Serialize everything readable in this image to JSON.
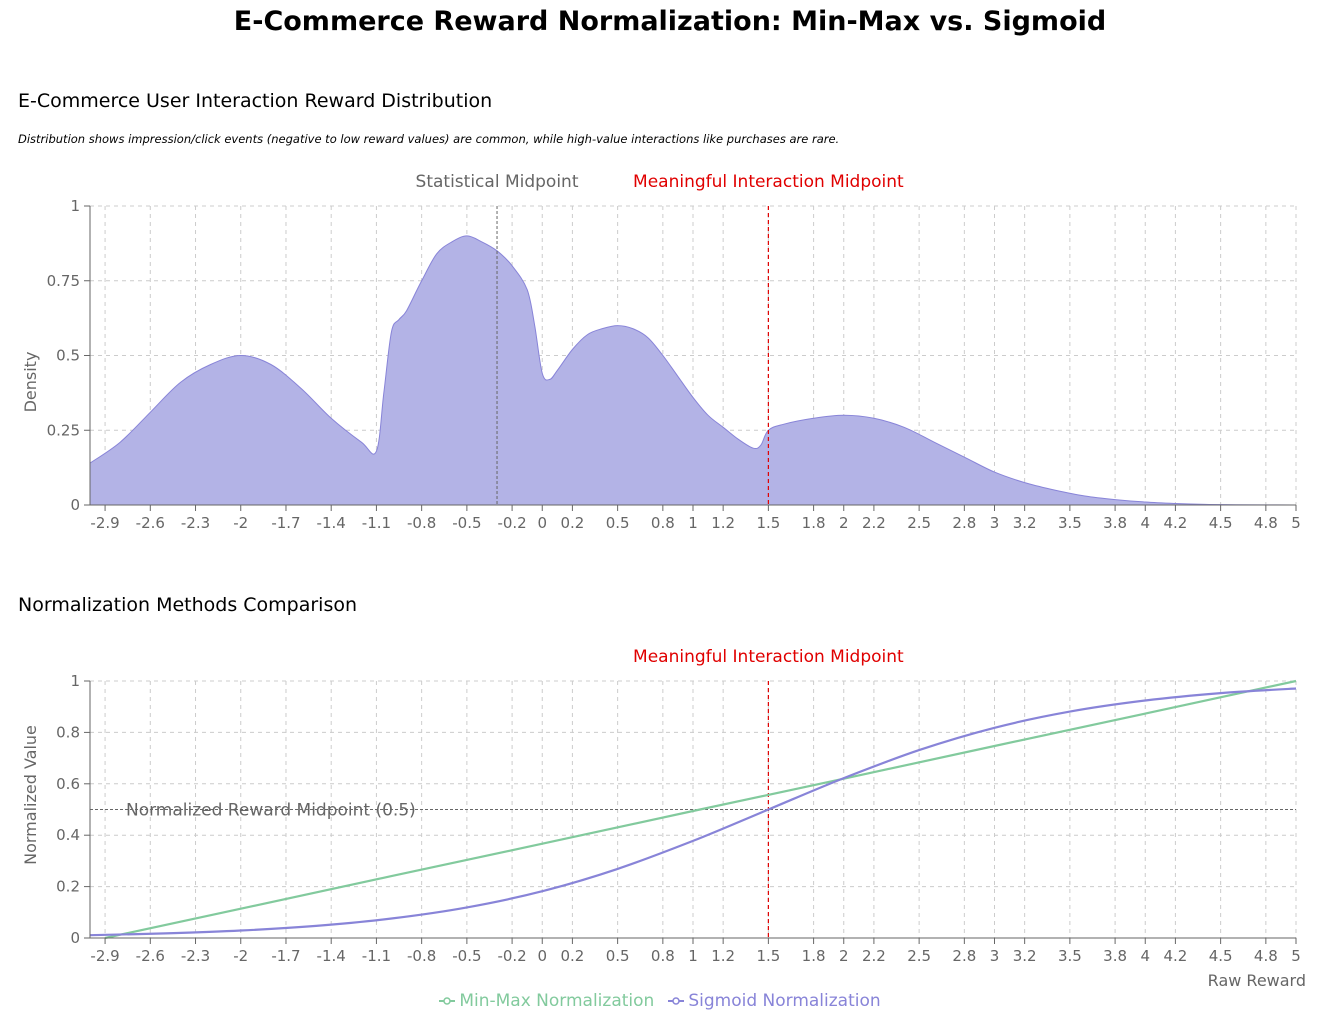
{
  "title": "E-Commerce Reward Normalization: Min-Max vs. Sigmoid",
  "distribution_section": {
    "title": "E-Commerce User Interaction Reward Distribution",
    "subtitle": "Distribution shows impression/click events (negative to low reward values) are common, while high-value interactions like purchases are rare."
  },
  "comparison_section": {
    "title": "Normalization Methods Comparison"
  },
  "colors": {
    "area_fill": "#b3b3e6",
    "area_stroke": "#8884d8",
    "minmax": "#82ca9d",
    "sigmoid": "#8884d8",
    "meaningful_ref": "#e00000",
    "statistical_ref": "#666666",
    "grid": "#cccccc",
    "axis": "#666666"
  },
  "chart_data": [
    {
      "type": "area",
      "title": "E-Commerce User Interaction Reward Distribution",
      "xlabel": "Raw Reward",
      "ylabel": "Density",
      "xlim": [
        -3,
        5
      ],
      "ylim": [
        0,
        1
      ],
      "x_ticks": [
        -2.9,
        -2.6,
        -2.3,
        -2,
        -1.7,
        -1.4,
        -1.1,
        -0.8,
        -0.5,
        -0.2,
        0,
        0.2,
        0.5,
        0.8,
        1,
        1.2,
        1.5,
        1.8,
        2,
        2.2,
        2.5,
        2.8,
        3,
        3.2,
        3.5,
        3.8,
        4,
        4.2,
        4.5,
        4.8,
        5
      ],
      "y_ticks": [
        0,
        0.25,
        0.5,
        0.75,
        1
      ],
      "grid": true,
      "series": [
        {
          "x": [
            -3,
            -2.8,
            -2.6,
            -2.4,
            -2.2,
            -2,
            -1.8,
            -1.6,
            -1.4,
            -1.2,
            -1.1,
            -1.05,
            -1,
            -0.95,
            -0.9,
            -0.8,
            -0.7,
            -0.6,
            -0.5,
            -0.4,
            -0.3,
            -0.2,
            -0.1,
            -0.05,
            0,
            0.05,
            0.1,
            0.2,
            0.3,
            0.4,
            0.5,
            0.6,
            0.7,
            0.8,
            0.9,
            1,
            1.1,
            1.2,
            1.3,
            1.4,
            1.45,
            1.5,
            1.6,
            1.8,
            2,
            2.2,
            2.4,
            2.6,
            2.8,
            3,
            3.2,
            3.4,
            3.6,
            3.8,
            4,
            4.2,
            4.4,
            4.6,
            4.8,
            5
          ],
          "y": [
            0.14,
            0.21,
            0.31,
            0.41,
            0.47,
            0.5,
            0.47,
            0.39,
            0.29,
            0.21,
            0.18,
            0.38,
            0.58,
            0.62,
            0.65,
            0.75,
            0.84,
            0.88,
            0.9,
            0.88,
            0.85,
            0.8,
            0.72,
            0.6,
            0.44,
            0.42,
            0.45,
            0.52,
            0.57,
            0.59,
            0.6,
            0.59,
            0.56,
            0.5,
            0.43,
            0.36,
            0.3,
            0.26,
            0.22,
            0.19,
            0.2,
            0.25,
            0.27,
            0.29,
            0.3,
            0.29,
            0.26,
            0.21,
            0.16,
            0.11,
            0.075,
            0.05,
            0.03,
            0.018,
            0.01,
            0.005,
            0.002,
            0.001,
            0.0005,
            0
          ]
        }
      ],
      "reference_lines": [
        {
          "x": -0.3,
          "label": "Statistical Midpoint",
          "color": "#666666"
        },
        {
          "x": 1.5,
          "label": "Meaningful Interaction Midpoint",
          "color": "#e00000"
        }
      ]
    },
    {
      "type": "line",
      "title": "Normalization Methods Comparison",
      "xlabel": "Raw Reward",
      "ylabel": "Normalized Value",
      "xlim": [
        -3,
        5
      ],
      "ylim": [
        0,
        1
      ],
      "x_ticks": [
        -2.9,
        -2.6,
        -2.3,
        -2,
        -1.7,
        -1.4,
        -1.1,
        -0.8,
        -0.5,
        -0.2,
        0,
        0.2,
        0.5,
        0.8,
        1,
        1.2,
        1.5,
        1.8,
        2,
        2.2,
        2.5,
        2.8,
        3,
        3.2,
        3.5,
        3.8,
        4,
        4.2,
        4.5,
        4.8,
        5
      ],
      "y_ticks": [
        0,
        0.2,
        0.4,
        0.6,
        0.8,
        1
      ],
      "grid": true,
      "legend_position": "bottom",
      "series": [
        {
          "name": "Min-Max Normalization",
          "x": [
            -2.9,
            -2,
            -1,
            0,
            1,
            2,
            3,
            4,
            5
          ],
          "y": [
            0,
            0.114,
            0.241,
            0.367,
            0.494,
            0.62,
            0.747,
            0.873,
            1
          ]
        },
        {
          "name": "Sigmoid Normalization",
          "x": [
            -3,
            -2.5,
            -2,
            -1.5,
            -1,
            -0.5,
            0,
            0.5,
            1,
            1.5,
            2,
            2.5,
            3,
            3.5,
            4,
            4.5,
            5
          ],
          "y": [
            0.011,
            0.018,
            0.029,
            0.047,
            0.076,
            0.119,
            0.182,
            0.269,
            0.378,
            0.5,
            0.622,
            0.731,
            0.818,
            0.881,
            0.924,
            0.953,
            0.971
          ]
        }
      ],
      "reference_lines": [
        {
          "x": 1.5,
          "label": "Meaningful Interaction Midpoint",
          "color": "#e00000"
        },
        {
          "y": 0.5,
          "label": "Normalized Reward Midpoint (0.5)",
          "color": "#666666"
        }
      ]
    }
  ]
}
